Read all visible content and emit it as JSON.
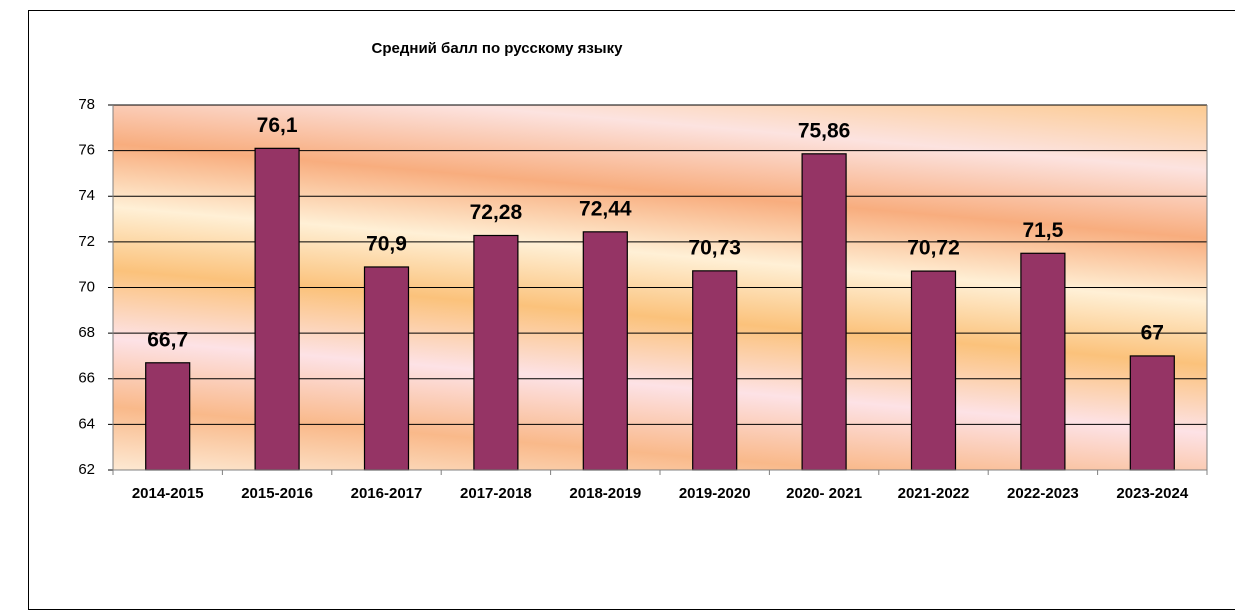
{
  "chart_data": {
    "type": "bar",
    "title": "Средний балл по русскому языку",
    "categories": [
      "2014-2015",
      "2015-2016",
      "2016-2017",
      "2017-2018",
      "2018-2019",
      "2019-2020",
      "2020- 2021",
      "2021-2022",
      "2022-2023",
      "2023-2024"
    ],
    "values": [
      66.7,
      76.1,
      70.9,
      72.28,
      72.44,
      70.73,
      75.86,
      70.72,
      71.5,
      67
    ],
    "value_labels": [
      "66,7",
      "76,1",
      "70,9",
      "72,28",
      "72,44",
      "70,73",
      "75,86",
      "70,72",
      "71,5",
      "67"
    ],
    "color": "#953465",
    "ylim": [
      62,
      78
    ],
    "yticks": [
      62,
      64,
      66,
      68,
      70,
      72,
      74,
      76,
      78
    ],
    "grid": true
  }
}
